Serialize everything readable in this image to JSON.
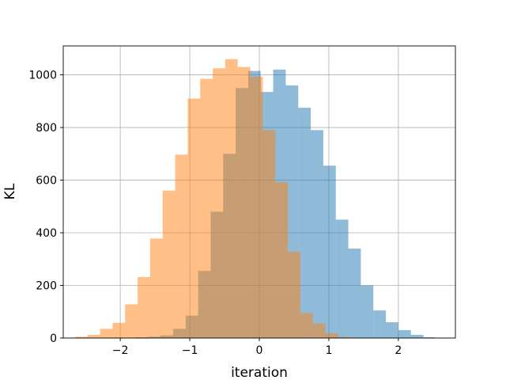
{
  "chart_data": {
    "type": "bar",
    "title": "",
    "xlabel": "iteration",
    "ylabel": "KL",
    "xlim": [
      -2.82,
      2.82
    ],
    "ylim": [
      0,
      1110
    ],
    "grid": true,
    "xticks": [
      -2,
      -1,
      0,
      1,
      2
    ],
    "xtick_labels": [
      "−2",
      "−1",
      "0",
      "1",
      "2"
    ],
    "yticks": [
      0,
      200,
      400,
      600,
      800,
      1000
    ],
    "ytick_labels": [
      "0",
      "200",
      "400",
      "600",
      "800",
      "1000"
    ],
    "series": [
      {
        "color": "#1f77b4",
        "alpha": 0.5,
        "bin_edges": [
          -2.32,
          -2.14,
          -1.96,
          -1.78,
          -1.6,
          -1.42,
          -1.24,
          -1.06,
          -0.88,
          -0.7,
          -0.52,
          -0.34,
          -0.16,
          0.02,
          0.2,
          0.38,
          0.56,
          0.74,
          0.92,
          1.1,
          1.28,
          1.46,
          1.64,
          1.82,
          2.0,
          2.18,
          2.36,
          2.52
        ],
        "counts": [
          1,
          2,
          1,
          3,
          5,
          10,
          35,
          85,
          255,
          480,
          700,
          950,
          1015,
          935,
          1020,
          960,
          875,
          790,
          655,
          450,
          340,
          200,
          105,
          60,
          30,
          12,
          3
        ]
      },
      {
        "color": "#ff7f0e",
        "alpha": 0.5,
        "bin_edges": [
          -2.65,
          -2.47,
          -2.29,
          -2.11,
          -1.93,
          -1.75,
          -1.57,
          -1.39,
          -1.21,
          -1.03,
          -0.85,
          -0.67,
          -0.49,
          -0.31,
          -0.13,
          0.05,
          0.23,
          0.41,
          0.59,
          0.77,
          0.95,
          1.13,
          1.31,
          1.49
        ],
        "counts": [
          5,
          12,
          35,
          58,
          128,
          232,
          378,
          560,
          697,
          910,
          985,
          1025,
          1060,
          1030,
          993,
          790,
          592,
          328,
          95,
          55,
          18,
          4,
          1
        ]
      }
    ]
  }
}
